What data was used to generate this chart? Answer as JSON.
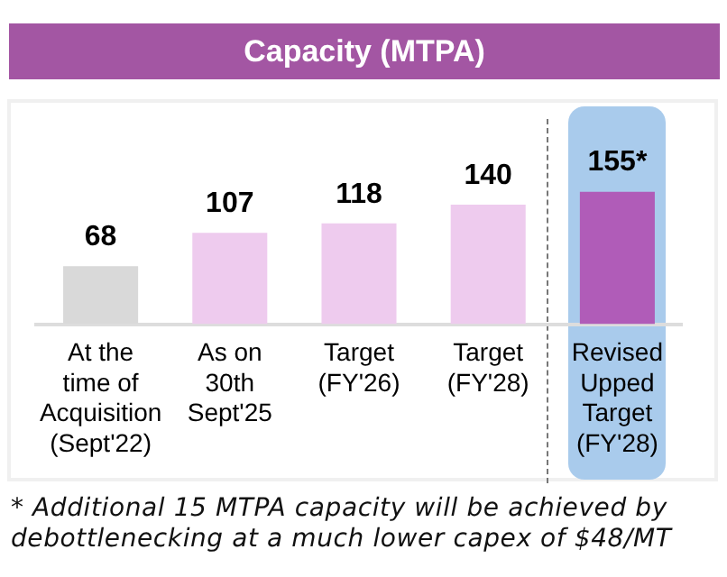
{
  "chart_data": {
    "type": "bar",
    "title": "Capacity (MTPA)",
    "categories": [
      "At the time of Acquisition (Sept'22)",
      "As on 30th Sept'25",
      "Target (FY'26)",
      "Target (FY'28)",
      "Revised Upped Target (FY'28)"
    ],
    "values": [
      68,
      107,
      118,
      140,
      155
    ],
    "colors": [
      "#d9d9d9",
      "#eecbee",
      "#eecbee",
      "#eecbee",
      "#b05cb8"
    ],
    "value_labels": [
      "68",
      "107",
      "118",
      "140",
      "155*"
    ],
    "legend": false,
    "grid": false,
    "annotations": [
      "* Additional 15 MTPA capacity will be achieved by debottlenecking at a much lower capex of  $48/MT"
    ]
  }
}
